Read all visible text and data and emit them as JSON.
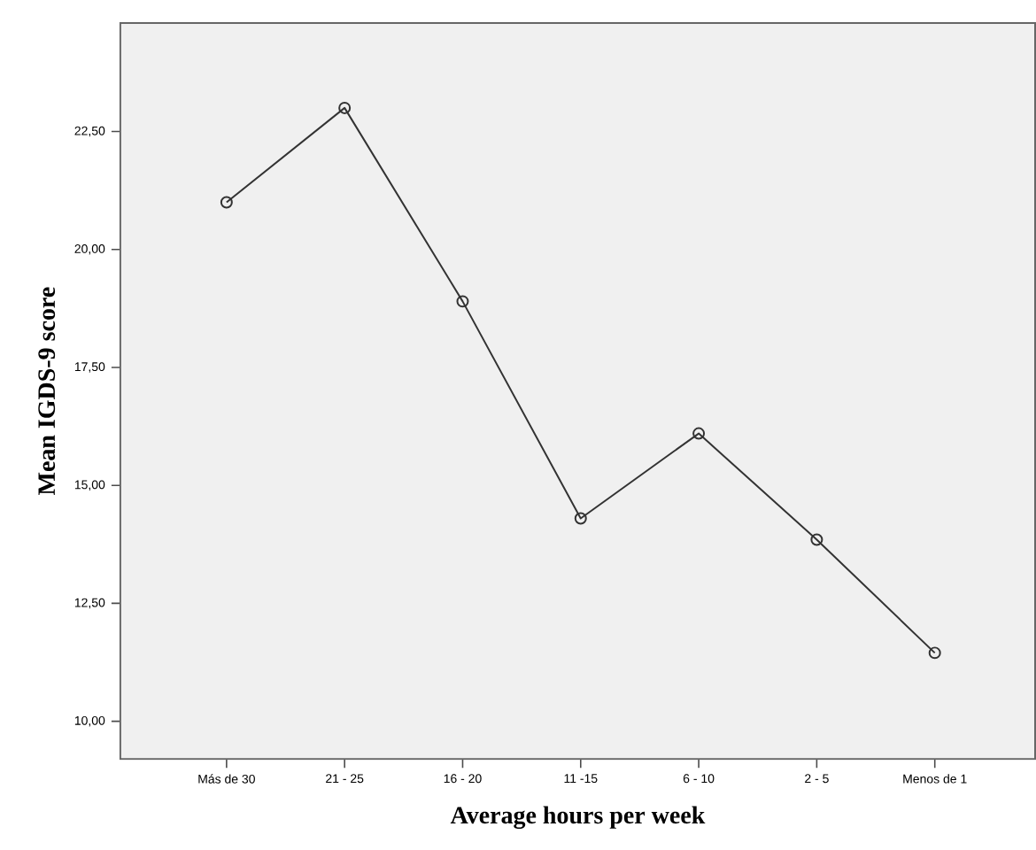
{
  "chart_data": {
    "type": "line",
    "xlabel": "Average hours per week",
    "ylabel": "Mean IGDS-9 score",
    "categories": [
      "Más de 30",
      "21 - 25",
      "16 - 20",
      "11 -15",
      "6 - 10",
      "2 - 5",
      "Menos de 1"
    ],
    "series": [
      {
        "color": "#333333",
        "values": [
          21.0,
          23.0,
          18.9,
          14.3,
          16.1,
          13.85,
          11.45
        ]
      }
    ],
    "ylim": [
      9.2,
      24.8
    ],
    "yticks": [
      {
        "value": 10,
        "label": "10,00"
      },
      {
        "value": 12.5,
        "label": "12,50"
      },
      {
        "value": 15,
        "label": "15,00"
      },
      {
        "value": 17.5,
        "label": "17,50"
      },
      {
        "value": 20,
        "label": "20,00"
      },
      {
        "value": 22.5,
        "label": "22,50"
      }
    ],
    "marker": "circle",
    "line_style": "solid"
  }
}
